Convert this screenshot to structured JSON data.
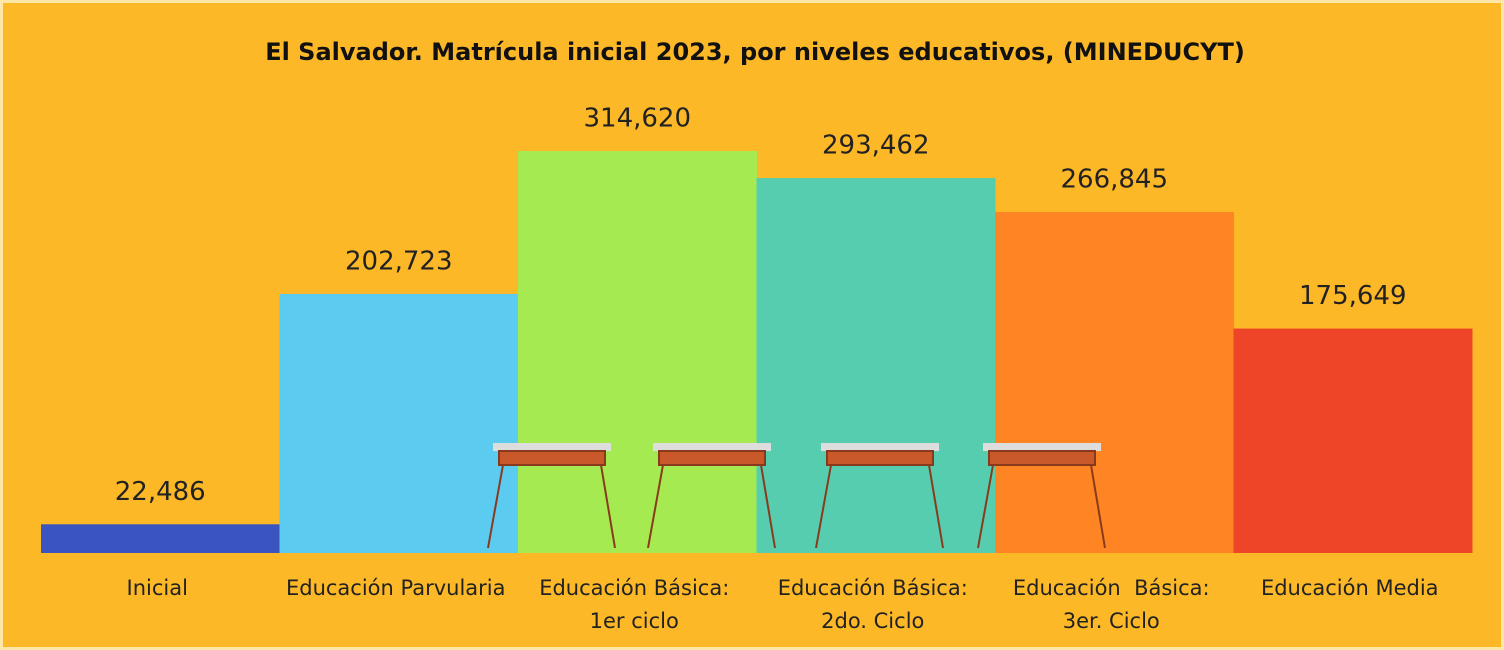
{
  "chart_data": {
    "type": "bar",
    "title": "El Salvador. Matrícula inicial 2023, por niveles educativos, (MINEDUCYT)",
    "categories": [
      "Inicial",
      "Educación Parvularia",
      "Educación Básica:\n1er ciclo",
      "Educación Básica:\n2do. Ciclo",
      "Educación  Básica:\n3er. Ciclo",
      "Educación Media"
    ],
    "values": [
      22486,
      202723,
      314620,
      293462,
      266845,
      175649
    ],
    "value_labels": [
      "22,486",
      "202,723",
      "314,620",
      "293,462",
      "266,845",
      "175,649"
    ],
    "colors": [
      "#3b55c0",
      "#5ccbf0",
      "#a6ea52",
      "#57cdb0",
      "#ff8424",
      "#ee4427"
    ]
  }
}
